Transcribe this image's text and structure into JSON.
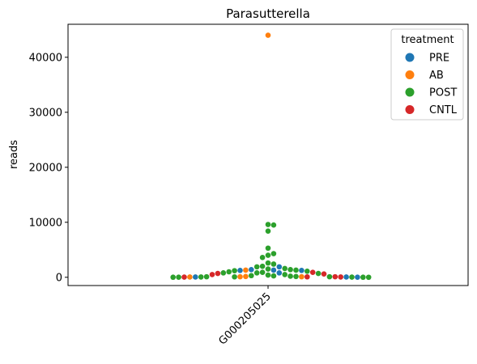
{
  "chart_data": {
    "type": "scatter",
    "subtype": "swarm",
    "title": "Parasutterella",
    "xlabel": "",
    "ylabel": "reads",
    "categories": [
      "G000205025"
    ],
    "ylim": [
      -1500,
      46000
    ],
    "yticks": [
      0,
      10000,
      20000,
      30000,
      40000
    ],
    "ytick_labels": [
      "0",
      "10000",
      "20000",
      "30000",
      "40000"
    ],
    "grid": false,
    "legend": {
      "title": "treatment",
      "placement": "top-right",
      "entries": [
        "PRE",
        "AB",
        "POST",
        "CNTL"
      ]
    },
    "colors": {
      "PRE": "#1f77b4",
      "AB": "#ff7f0e",
      "POST": "#2ca02c",
      "CNTL": "#d62728"
    },
    "series": [
      {
        "name": "PRE",
        "values": [
          1900,
          1400,
          1300,
          1250,
          1250,
          800,
          50,
          50,
          20
        ]
      },
      {
        "name": "AB",
        "values": [
          44000,
          1300,
          100,
          50,
          150,
          100
        ]
      },
      {
        "name": "POST",
        "values": [
          9600,
          9500,
          8400,
          5300,
          4300,
          4000,
          3600,
          2600,
          2400,
          2000,
          1900,
          1600,
          1500,
          1400,
          1300,
          1200,
          1100,
          1000,
          900,
          800,
          800,
          700,
          500,
          400,
          300,
          250,
          200,
          150,
          100,
          100,
          80,
          60,
          40,
          20,
          10,
          10,
          5
        ]
      },
      {
        "name": "CNTL",
        "values": [
          900,
          700,
          600,
          500,
          100,
          80,
          60,
          40
        ]
      }
    ]
  }
}
